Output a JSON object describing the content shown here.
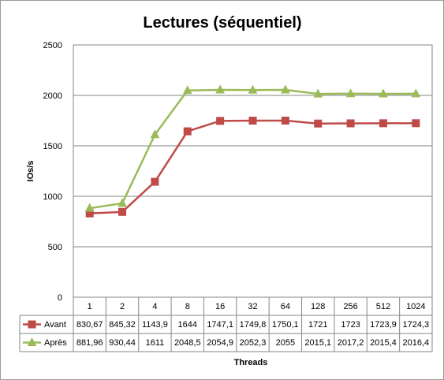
{
  "chart_data": {
    "type": "line",
    "title": "Lectures (séquentiel)",
    "xlabel": "Threads",
    "ylabel": "IOs/s",
    "ylim": [
      0,
      2500
    ],
    "yticks": [
      0,
      500,
      1000,
      1500,
      2000,
      2500
    ],
    "grid": true,
    "legend": "data-table",
    "categories": [
      "1",
      "2",
      "4",
      "8",
      "16",
      "32",
      "64",
      "128",
      "256",
      "512",
      "1024"
    ],
    "series": [
      {
        "name": "Avant",
        "color": "#be4b48",
        "marker": "square",
        "values": [
          830.67,
          845.32,
          1143.9,
          1644,
          1747.1,
          1749.8,
          1750.1,
          1721,
          1723,
          1723.9,
          1724.3
        ],
        "labels": [
          "830,67",
          "845,32",
          "1143,9",
          "1644",
          "1747,1",
          "1749,8",
          "1750,1",
          "1721",
          "1723",
          "1723,9",
          "1724,3"
        ]
      },
      {
        "name": "Après",
        "color": "#9bbb59",
        "marker": "triangle",
        "values": [
          881.96,
          930.44,
          1611,
          2048.5,
          2054.9,
          2052.3,
          2055,
          2015.1,
          2017.2,
          2015.4,
          2016.4
        ],
        "labels": [
          "881,96",
          "930,44",
          "1611",
          "2048,5",
          "2054,9",
          "2052,3",
          "2055",
          "2015,1",
          "2017,2",
          "2015,4",
          "2016,4"
        ]
      }
    ]
  }
}
